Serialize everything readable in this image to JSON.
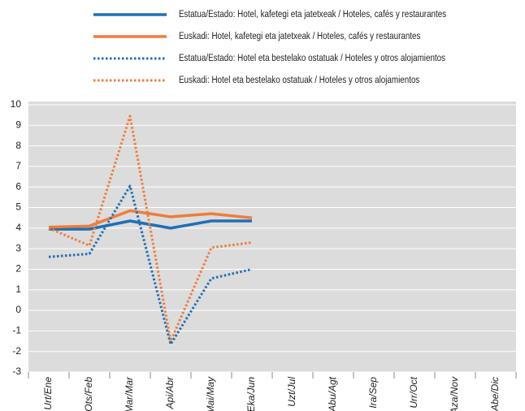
{
  "chart_data": {
    "type": "line",
    "categories": [
      "Urt/Ene",
      "Ots/Feb",
      "Mar/Mar",
      "Api/Abr",
      "Mai/May",
      "Eka/Jun",
      "Uzt/Jul",
      "Abu/Agt",
      "Ira/Sep",
      "Urr/Oct",
      "Aza/Nov",
      "Abe/Dic"
    ],
    "series": [
      {
        "name": "Estatua/Estado: Hotel, kafetegi eta jatetxeak / Hoteles, cafés y restaurantes",
        "color": "#1f6fb5",
        "style": "solid",
        "values": [
          3.95,
          3.95,
          4.35,
          4.0,
          4.35,
          4.35,
          null,
          null,
          null,
          null,
          null,
          null
        ]
      },
      {
        "name": "Euskadi: Hotel, kafetegi eta jatetxeak / Hoteles, cafés y restaurantes",
        "color": "#ee7d3a",
        "style": "solid",
        "values": [
          4.05,
          4.1,
          4.85,
          4.55,
          4.7,
          4.5,
          null,
          null,
          null,
          null,
          null,
          null
        ]
      },
      {
        "name": "Estatua/Estado: Hotel eta bestelako ostatuak / Hoteles y otros alojamientos",
        "color": "#1f6fb5",
        "style": "dotted",
        "values": [
          2.6,
          2.75,
          6.05,
          -1.65,
          1.55,
          2.0,
          null,
          null,
          null,
          null,
          null,
          null
        ]
      },
      {
        "name": "Euskadi: Hotel eta bestelako ostatuak / Hoteles y otros alojamientos",
        "color": "#ee7d3a",
        "style": "dotted",
        "values": [
          4.0,
          3.15,
          9.45,
          -1.5,
          3.05,
          3.3,
          null,
          null,
          null,
          null,
          null,
          null
        ]
      }
    ],
    "ylim": [
      -3,
      10
    ],
    "yticks": [
      -3,
      -2,
      -1,
      0,
      1,
      2,
      3,
      4,
      5,
      6,
      7,
      8,
      9,
      10
    ],
    "grid": true
  }
}
